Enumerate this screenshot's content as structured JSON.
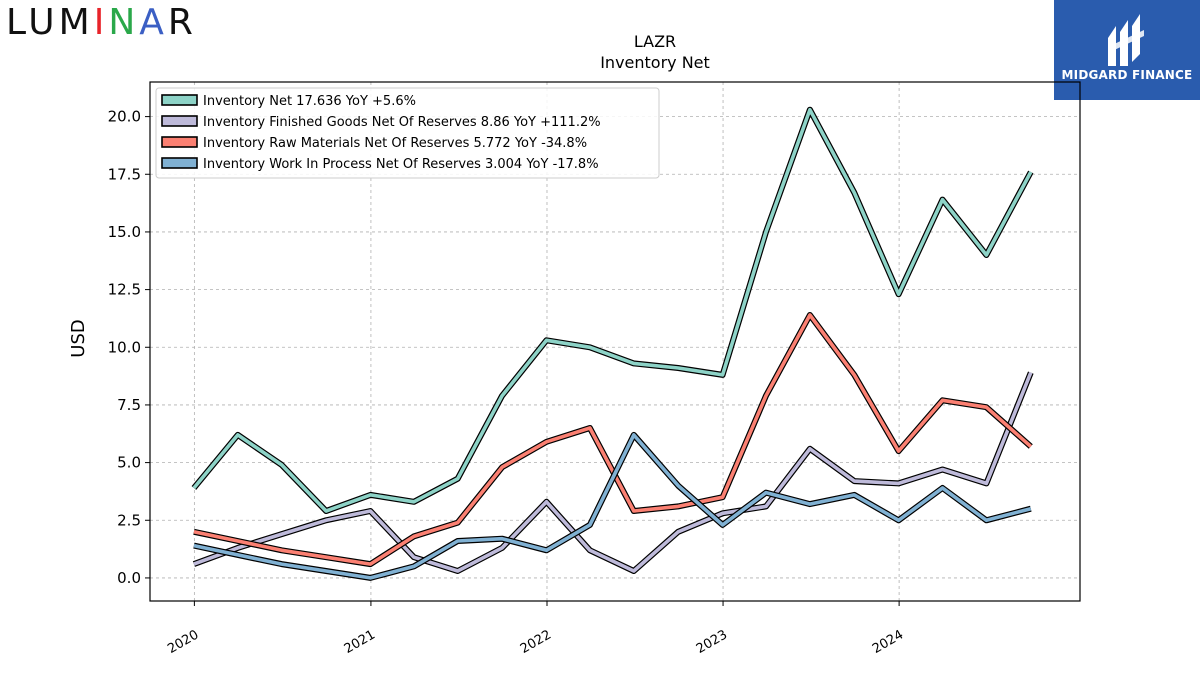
{
  "brand": {
    "logo_parts": [
      "LUM",
      "I",
      "N",
      "A",
      "R"
    ],
    "badge_text": "MIDGARD FINANCE"
  },
  "colors": {
    "badge_bg": "#2a5cae",
    "series": [
      "#8dd3c7",
      "#bebada",
      "#fb8072",
      "#80b1d3"
    ]
  },
  "chart_data": {
    "type": "line",
    "title": "LAZR",
    "subtitle": "Inventory Net",
    "ylabel": "USD",
    "xlabel": "",
    "ylim": [
      -1.0,
      21.5
    ],
    "xlim": [
      "2019-10-01",
      "2025-01-10"
    ],
    "yticks": [
      0.0,
      2.5,
      5.0,
      7.5,
      10.0,
      12.5,
      15.0,
      17.5,
      20.0
    ],
    "ytick_labels": [
      "0.0",
      "2.5",
      "5.0",
      "7.5",
      "10.0",
      "12.5",
      "15.0",
      "17.5",
      "20.0"
    ],
    "xticks": [
      "2020-01-01",
      "2021-01-01",
      "2022-01-01",
      "2023-01-01",
      "2024-01-01"
    ],
    "xtick_labels": [
      "2020",
      "2021",
      "2022",
      "2023",
      "2024"
    ],
    "grid": true,
    "legend_position": "top-left",
    "x": [
      "2019-12-31",
      "2020-03-31",
      "2020-06-30",
      "2020-09-30",
      "2020-12-31",
      "2021-03-31",
      "2021-06-30",
      "2021-09-30",
      "2021-12-31",
      "2022-03-31",
      "2022-06-30",
      "2022-09-30",
      "2022-12-31",
      "2023-03-31",
      "2023-06-30",
      "2023-09-30",
      "2023-12-31",
      "2024-03-31",
      "2024-06-30",
      "2024-09-30"
    ],
    "series": [
      {
        "name": "Inventory Net",
        "legend": "Inventory Net  17.636 YoY +5.6%",
        "values": [
          3.9,
          6.2,
          4.9,
          2.9,
          3.6,
          3.3,
          4.3,
          7.9,
          10.3,
          10.0,
          9.3,
          9.1,
          8.8,
          15.0,
          20.3,
          16.7,
          12.3,
          16.4,
          14.0,
          17.6
        ]
      },
      {
        "name": "Inventory Finished Goods Net Of Reserves",
        "legend": "Inventory Finished Goods Net Of Reserves  8.86 YoY +111.2%",
        "values": [
          0.6,
          1.3,
          1.9,
          2.5,
          2.9,
          0.9,
          0.3,
          1.3,
          3.3,
          1.2,
          0.3,
          2.0,
          2.8,
          3.1,
          5.6,
          4.2,
          4.1,
          4.7,
          4.1,
          8.9
        ]
      },
      {
        "name": "Inventory Raw Materials Net Of Reserves",
        "legend": "Inventory Raw Materials Net Of Reserves  5.772 YoY -34.8%",
        "values": [
          2.0,
          1.6,
          1.2,
          0.9,
          0.6,
          1.8,
          2.4,
          4.8,
          5.9,
          6.5,
          2.9,
          3.1,
          3.5,
          7.9,
          11.4,
          8.8,
          5.5,
          7.7,
          7.4,
          5.7
        ]
      },
      {
        "name": "Inventory Work In Process Net Of Reserves",
        "legend": "Inventory Work In Process Net Of Reserves  3.004 YoY -17.8%",
        "values": [
          1.4,
          1.0,
          0.6,
          0.3,
          0.0,
          0.5,
          1.6,
          1.7,
          1.2,
          2.3,
          6.2,
          4.0,
          2.3,
          3.7,
          3.2,
          3.6,
          2.5,
          3.9,
          2.5,
          3.0
        ]
      }
    ]
  }
}
